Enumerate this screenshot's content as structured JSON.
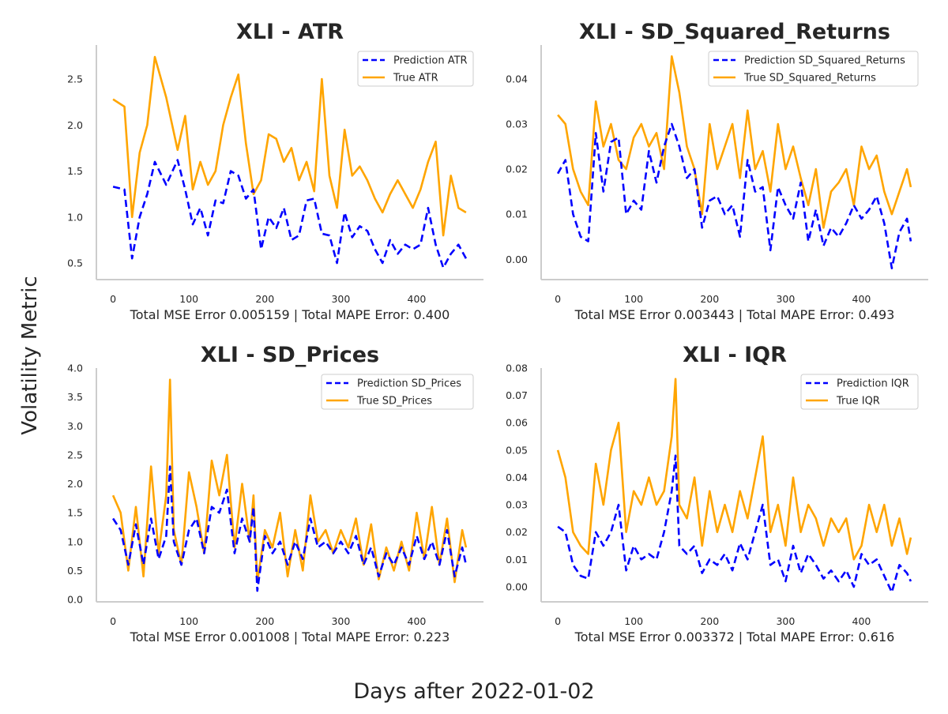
{
  "figure": {
    "ylabel": "Volatility Metric",
    "xlabel": "Days after 2022-01-02"
  },
  "colors": {
    "prediction": "#0000ff",
    "true": "#ffa500",
    "axis": "#cccccc",
    "text": "#262626"
  },
  "chart_data": [
    {
      "type": "line",
      "title": "XLI - ATR",
      "xlabel": "Total MSE Error 0.005159 | Total MAPE Error: 0.400",
      "ylabel": "",
      "xlim": [
        -22,
        488
      ],
      "ylim": [
        0.32,
        2.87
      ],
      "xticks": [
        0,
        100,
        200,
        300,
        400
      ],
      "yticks": [
        0.5,
        1.0,
        1.5,
        2.0,
        2.5
      ],
      "ytick_labels": [
        "0.5",
        "1.0",
        "1.5",
        "2.0",
        "2.5"
      ],
      "legend_position": "upper right",
      "x": [
        0,
        15,
        25,
        35,
        45,
        55,
        70,
        85,
        95,
        105,
        115,
        125,
        135,
        145,
        155,
        165,
        175,
        185,
        195,
        205,
        215,
        225,
        235,
        245,
        255,
        265,
        275,
        285,
        295,
        305,
        315,
        325,
        335,
        345,
        355,
        365,
        375,
        385,
        395,
        405,
        415,
        425,
        435,
        445,
        455,
        465
      ],
      "series": [
        {
          "name": "Prediction ATR",
          "style": "dashed",
          "values": [
            1.33,
            1.3,
            0.55,
            1.0,
            1.25,
            1.6,
            1.35,
            1.62,
            1.3,
            0.92,
            1.1,
            0.8,
            1.18,
            1.15,
            1.5,
            1.45,
            1.2,
            1.3,
            0.65,
            1.0,
            0.88,
            1.1,
            0.75,
            0.8,
            1.18,
            1.2,
            0.82,
            0.8,
            0.5,
            1.05,
            0.78,
            0.9,
            0.85,
            0.65,
            0.5,
            0.75,
            0.6,
            0.7,
            0.65,
            0.7,
            1.1,
            0.7,
            0.45,
            0.6,
            0.7,
            0.55
          ]
        },
        {
          "name": "True ATR",
          "style": "solid",
          "values": [
            2.28,
            2.2,
            1.0,
            1.7,
            2.0,
            2.74,
            2.3,
            1.73,
            2.1,
            1.3,
            1.6,
            1.35,
            1.5,
            2.0,
            2.3,
            2.55,
            1.8,
            1.25,
            1.4,
            1.9,
            1.85,
            1.6,
            1.75,
            1.4,
            1.6,
            1.28,
            2.5,
            1.45,
            1.1,
            1.95,
            1.45,
            1.55,
            1.4,
            1.2,
            1.05,
            1.25,
            1.4,
            1.25,
            1.1,
            1.3,
            1.6,
            1.82,
            0.8,
            1.45,
            1.1,
            1.05
          ]
        }
      ]
    },
    {
      "type": "line",
      "title": "XLI - SD_Squared_Returns",
      "xlabel": "Total MSE Error 0.003443 | Total MAPE Error: 0.493",
      "ylabel": "",
      "xlim": [
        -22,
        488
      ],
      "ylim": [
        -0.0045,
        0.0475
      ],
      "xticks": [
        0,
        100,
        200,
        300,
        400
      ],
      "yticks": [
        0.0,
        0.01,
        0.02,
        0.03,
        0.04
      ],
      "ytick_labels": [
        "0.00",
        "0.01",
        "0.02",
        "0.03",
        "0.04"
      ],
      "legend_position": "upper right",
      "x": [
        0,
        10,
        20,
        30,
        40,
        50,
        60,
        70,
        80,
        90,
        100,
        110,
        120,
        130,
        140,
        150,
        160,
        170,
        180,
        190,
        200,
        210,
        220,
        230,
        240,
        250,
        260,
        270,
        280,
        290,
        300,
        310,
        320,
        330,
        340,
        350,
        360,
        370,
        380,
        390,
        400,
        410,
        420,
        430,
        440,
        450,
        460,
        465
      ],
      "series": [
        {
          "name": "Prediction SD_Squared_Returns",
          "style": "dashed",
          "values": [
            0.019,
            0.022,
            0.01,
            0.005,
            0.004,
            0.028,
            0.015,
            0.026,
            0.027,
            0.01,
            0.013,
            0.011,
            0.024,
            0.017,
            0.025,
            0.03,
            0.025,
            0.018,
            0.02,
            0.007,
            0.013,
            0.014,
            0.01,
            0.012,
            0.005,
            0.022,
            0.015,
            0.016,
            0.002,
            0.016,
            0.012,
            0.009,
            0.017,
            0.004,
            0.011,
            0.003,
            0.007,
            0.005,
            0.008,
            0.012,
            0.009,
            0.011,
            0.014,
            0.008,
            -0.002,
            0.006,
            0.009,
            0.004
          ]
        },
        {
          "name": "True SD_Squared_Returns",
          "style": "solid",
          "values": [
            0.032,
            0.03,
            0.02,
            0.015,
            0.012,
            0.035,
            0.025,
            0.03,
            0.022,
            0.02,
            0.027,
            0.03,
            0.025,
            0.028,
            0.02,
            0.045,
            0.037,
            0.025,
            0.02,
            0.01,
            0.03,
            0.02,
            0.025,
            0.03,
            0.018,
            0.033,
            0.02,
            0.024,
            0.015,
            0.03,
            0.02,
            0.025,
            0.018,
            0.012,
            0.02,
            0.007,
            0.015,
            0.017,
            0.02,
            0.012,
            0.025,
            0.02,
            0.023,
            0.015,
            0.01,
            0.015,
            0.02,
            0.016
          ]
        }
      ]
    },
    {
      "type": "line",
      "title": "XLI - SD_Prices",
      "xlabel": "Total MSE Error 0.001008 | Total MAPE Error: 0.223",
      "ylabel": "",
      "xlim": [
        -22,
        488
      ],
      "ylim": [
        -0.04,
        4.0
      ],
      "xticks": [
        0,
        100,
        200,
        300,
        400
      ],
      "yticks": [
        0.0,
        0.5,
        1.0,
        1.5,
        2.0,
        2.5,
        3.0,
        3.5,
        4.0
      ],
      "ytick_labels": [
        "0.0",
        "0.5",
        "1.0",
        "1.5",
        "2.0",
        "2.5",
        "3.0",
        "3.5",
        "4.0"
      ],
      "legend_position": "upper right",
      "x": [
        0,
        10,
        20,
        30,
        40,
        50,
        60,
        70,
        75,
        80,
        90,
        100,
        110,
        120,
        130,
        140,
        150,
        160,
        170,
        180,
        185,
        190,
        200,
        210,
        220,
        230,
        240,
        250,
        260,
        270,
        280,
        290,
        300,
        310,
        320,
        330,
        340,
        350,
        360,
        370,
        380,
        390,
        400,
        410,
        420,
        430,
        440,
        450,
        460,
        465
      ],
      "series": [
        {
          "name": "Prediction SD_Prices",
          "style": "dashed",
          "values": [
            1.4,
            1.2,
            0.6,
            1.3,
            0.6,
            1.4,
            0.7,
            1.1,
            2.3,
            1.0,
            0.6,
            1.2,
            1.4,
            0.8,
            1.6,
            1.5,
            1.9,
            0.8,
            1.4,
            1.0,
            1.6,
            0.15,
            1.1,
            0.8,
            1.0,
            0.6,
            1.0,
            0.7,
            1.4,
            0.9,
            1.0,
            0.8,
            1.0,
            0.8,
            1.1,
            0.6,
            0.9,
            0.4,
            0.8,
            0.6,
            0.9,
            0.6,
            1.1,
            0.7,
            1.0,
            0.6,
            1.2,
            0.4,
            0.9,
            0.6
          ]
        },
        {
          "name": "True SD_Prices",
          "style": "solid",
          "values": [
            1.8,
            1.5,
            0.5,
            1.6,
            0.4,
            2.3,
            0.8,
            1.8,
            3.8,
            1.2,
            0.6,
            2.2,
            1.6,
            0.8,
            2.4,
            1.8,
            2.5,
            0.9,
            2.0,
            1.0,
            1.8,
            0.3,
            1.2,
            0.9,
            1.5,
            0.4,
            1.2,
            0.5,
            1.8,
            1.0,
            1.2,
            0.8,
            1.2,
            0.9,
            1.4,
            0.6,
            1.3,
            0.35,
            0.9,
            0.5,
            1.0,
            0.5,
            1.5,
            0.7,
            1.6,
            0.6,
            1.4,
            0.3,
            1.2,
            0.9
          ]
        }
      ]
    },
    {
      "type": "line",
      "title": "XLI - IQR",
      "xlabel": "Total MSE Error 0.003372 | Total MAPE Error: 0.616",
      "ylabel": "",
      "xlim": [
        -22,
        488
      ],
      "ylim": [
        -0.0055,
        0.08
      ],
      "xticks": [
        0,
        100,
        200,
        300,
        400
      ],
      "yticks": [
        0.0,
        0.01,
        0.02,
        0.03,
        0.04,
        0.05,
        0.06,
        0.07,
        0.08
      ],
      "ytick_labels": [
        "0.00",
        "0.01",
        "0.02",
        "0.03",
        "0.04",
        "0.05",
        "0.06",
        "0.07",
        "0.08"
      ],
      "legend_position": "upper right",
      "x": [
        0,
        10,
        20,
        30,
        40,
        50,
        60,
        70,
        80,
        90,
        100,
        110,
        120,
        130,
        140,
        150,
        155,
        160,
        170,
        180,
        190,
        200,
        210,
        220,
        230,
        240,
        250,
        260,
        270,
        280,
        290,
        300,
        310,
        320,
        330,
        340,
        350,
        360,
        370,
        380,
        390,
        400,
        410,
        420,
        430,
        440,
        450,
        460,
        465
      ],
      "series": [
        {
          "name": "Prediction IQR",
          "style": "dashed",
          "values": [
            0.022,
            0.02,
            0.008,
            0.004,
            0.003,
            0.02,
            0.015,
            0.02,
            0.03,
            0.006,
            0.015,
            0.01,
            0.012,
            0.01,
            0.02,
            0.035,
            0.048,
            0.015,
            0.012,
            0.015,
            0.005,
            0.01,
            0.008,
            0.012,
            0.006,
            0.016,
            0.01,
            0.02,
            0.03,
            0.008,
            0.01,
            0.002,
            0.015,
            0.005,
            0.012,
            0.008,
            0.003,
            0.006,
            0.002,
            0.006,
            0.0,
            0.012,
            0.008,
            0.01,
            0.004,
            -0.002,
            0.008,
            0.005,
            0.002
          ]
        },
        {
          "name": "True IQR",
          "style": "solid",
          "values": [
            0.05,
            0.04,
            0.02,
            0.015,
            0.012,
            0.045,
            0.03,
            0.05,
            0.06,
            0.02,
            0.035,
            0.03,
            0.04,
            0.03,
            0.035,
            0.055,
            0.076,
            0.03,
            0.025,
            0.04,
            0.015,
            0.035,
            0.02,
            0.03,
            0.02,
            0.035,
            0.025,
            0.04,
            0.055,
            0.02,
            0.03,
            0.015,
            0.04,
            0.02,
            0.03,
            0.025,
            0.015,
            0.025,
            0.02,
            0.025,
            0.01,
            0.015,
            0.03,
            0.02,
            0.03,
            0.015,
            0.025,
            0.012,
            0.018
          ]
        }
      ]
    }
  ]
}
